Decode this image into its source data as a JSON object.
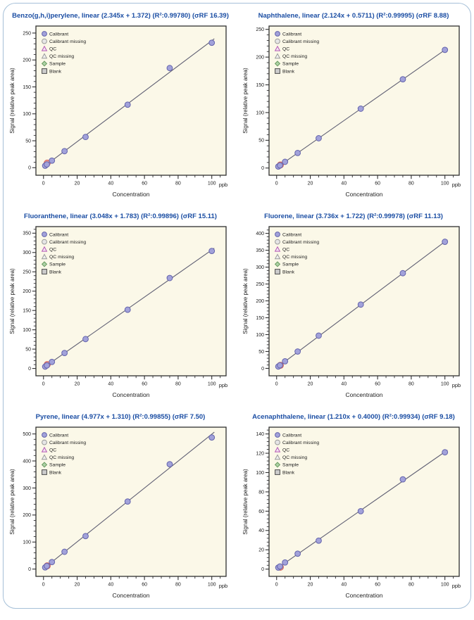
{
  "figure": {
    "name": "Calibration curves panel",
    "border_color": "#a6c0d8",
    "title_color": "#1a4da3",
    "plot_background": "#fbf8e8",
    "plot_border_color": "#2f2f2f",
    "regression_line_color": "#5f5f73",
    "calibrant_point": {
      "fill": "#a2a2da",
      "stroke": "#6363ac"
    },
    "qc_point": {
      "fill": "#ef9c94",
      "stroke": "#d25c54"
    }
  },
  "shared": {
    "xlabel": "Concentration",
    "x_unit": "ppb",
    "ylabel": "Signal (relative peak area)",
    "legend": [
      {
        "label": "Calibrant",
        "marker": "circle",
        "fill": "#a2a2da",
        "stroke": "#6363ac"
      },
      {
        "label": "Calibrant missing",
        "marker": "circle",
        "fill": "#e6e6e6",
        "stroke": "#9a9a9a"
      },
      {
        "label": "QC",
        "marker": "triangle",
        "fill": "#f3e3f3",
        "stroke": "#b55ab5"
      },
      {
        "label": "QC missing",
        "marker": "triangle",
        "fill": "#efefef",
        "stroke": "#9a9a9a"
      },
      {
        "label": "Sample",
        "marker": "diamond",
        "fill": "#aed2a6",
        "stroke": "#679a5e"
      },
      {
        "label": "Blank",
        "marker": "square",
        "fill": "#cccccc",
        "stroke": "#4a4a4a"
      }
    ]
  },
  "chart_data": [
    {
      "type": "scatter",
      "title": "Benzo(g,h,i)perylene, linear (2.345x + 1.372) (R²:0.99780) (σRF 16.39)",
      "compound": "Benzo(g,h,i)perylene",
      "fit": {
        "slope": 2.345,
        "intercept": 1.372,
        "r2": 0.9978,
        "srf": 16.39
      },
      "x_ticks": [
        0,
        20,
        40,
        60,
        80,
        100
      ],
      "y_ticks": [
        0,
        50,
        100,
        150,
        200,
        250
      ],
      "ylim": [
        -14,
        263
      ],
      "calibrant": {
        "x": [
          1,
          2,
          5,
          12.5,
          25,
          50,
          75,
          100
        ],
        "y": [
          3.7,
          6.1,
          13.1,
          30.7,
          57,
          117,
          185,
          232
        ]
      },
      "qc": {
        "x": 2.2,
        "y": 8.5
      }
    },
    {
      "type": "scatter",
      "title": "Naphthalene, linear (2.124x + 0.5711) (R²:0.99995) (σRF 8.88)",
      "compound": "Naphthalene",
      "fit": {
        "slope": 2.124,
        "intercept": 0.5711,
        "r2": 0.99995,
        "srf": 8.88
      },
      "x_ticks": [
        0,
        20,
        40,
        60,
        80,
        100
      ],
      "y_ticks": [
        0,
        50,
        100,
        150,
        200,
        250
      ],
      "ylim": [
        -13,
        256
      ],
      "calibrant": {
        "x": [
          1,
          2,
          5,
          12.5,
          25,
          50,
          75,
          100
        ],
        "y": [
          2.7,
          4.8,
          11.2,
          27.1,
          53.7,
          107,
          160,
          213
        ]
      },
      "qc": {
        "x": 2.2,
        "y": 5.5
      }
    },
    {
      "type": "scatter",
      "title": "Fluoranthene, linear (3.048x + 1.783) (R²:0.99896) (σRF 15.11)",
      "compound": "Fluoranthene",
      "fit": {
        "slope": 3.048,
        "intercept": 1.783,
        "r2": 0.99896,
        "srf": 15.11
      },
      "x_ticks": [
        0,
        20,
        40,
        60,
        80,
        100
      ],
      "y_ticks": [
        0,
        50,
        100,
        150,
        200,
        250,
        300,
        350
      ],
      "ylim": [
        -19,
        367
      ],
      "calibrant": {
        "x": [
          1,
          2,
          5,
          12.5,
          25,
          50,
          75,
          100
        ],
        "y": [
          4.8,
          7.9,
          17,
          40,
          76,
          152,
          234,
          304
        ]
      },
      "qc": {
        "x": 2.2,
        "y": 10
      }
    },
    {
      "type": "scatter",
      "title": "Fluorene, linear (3.736x + 1.722) (R²:0.99978) (σRF 11.13)",
      "compound": "Fluorene",
      "fit": {
        "slope": 3.736,
        "intercept": 1.722,
        "r2": 0.99978,
        "srf": 11.13
      },
      "x_ticks": [
        0,
        20,
        40,
        60,
        80,
        100
      ],
      "y_ticks": [
        0,
        50,
        100,
        150,
        200,
        250,
        300,
        350,
        400
      ],
      "ylim": [
        -22,
        420
      ],
      "calibrant": {
        "x": [
          1,
          2,
          5,
          12.5,
          25,
          50,
          75,
          100
        ],
        "y": [
          5.5,
          9.2,
          21,
          50,
          97,
          189,
          282,
          375
        ]
      },
      "qc": {
        "x": 2.2,
        "y": 9
      }
    },
    {
      "type": "scatter",
      "title": "Pyrene, linear (4.977x + 1.310) (R²:0.99855) (σRF 7.50)",
      "compound": "Pyrene",
      "fit": {
        "slope": 4.977,
        "intercept": 1.31,
        "r2": 0.99855,
        "srf": 7.5
      },
      "x_ticks": [
        0,
        20,
        40,
        60,
        80,
        100
      ],
      "y_ticks": [
        0,
        100,
        200,
        300,
        400,
        500
      ],
      "ylim": [
        -27,
        525
      ],
      "calibrant": {
        "x": [
          1,
          2,
          5,
          12.5,
          25,
          50,
          75,
          100
        ],
        "y": [
          6.3,
          11.3,
          26,
          64,
          122,
          250,
          388,
          487
        ]
      },
      "qc": {
        "x": 2.2,
        "y": 12
      }
    },
    {
      "type": "scatter",
      "title": "Acenaphthalene, linear (1.210x + 0.4000) (R²:0.99934) (σRF 9.18)",
      "compound": "Acenaphthalene",
      "fit": {
        "slope": 1.21,
        "intercept": 0.4,
        "r2": 0.99934,
        "srf": 9.18
      },
      "x_ticks": [
        0,
        20,
        40,
        60,
        80,
        100
      ],
      "y_ticks": [
        0,
        20,
        40,
        60,
        80,
        100,
        120,
        140
      ],
      "ylim": [
        -7.5,
        147
      ],
      "calibrant": {
        "x": [
          1,
          2,
          5,
          12.5,
          25,
          50,
          75,
          100
        ],
        "y": [
          1.6,
          2.8,
          6.9,
          16,
          29.5,
          60,
          93,
          121
        ]
      },
      "qc": {
        "x": 2.2,
        "y": 2.0
      }
    }
  ]
}
